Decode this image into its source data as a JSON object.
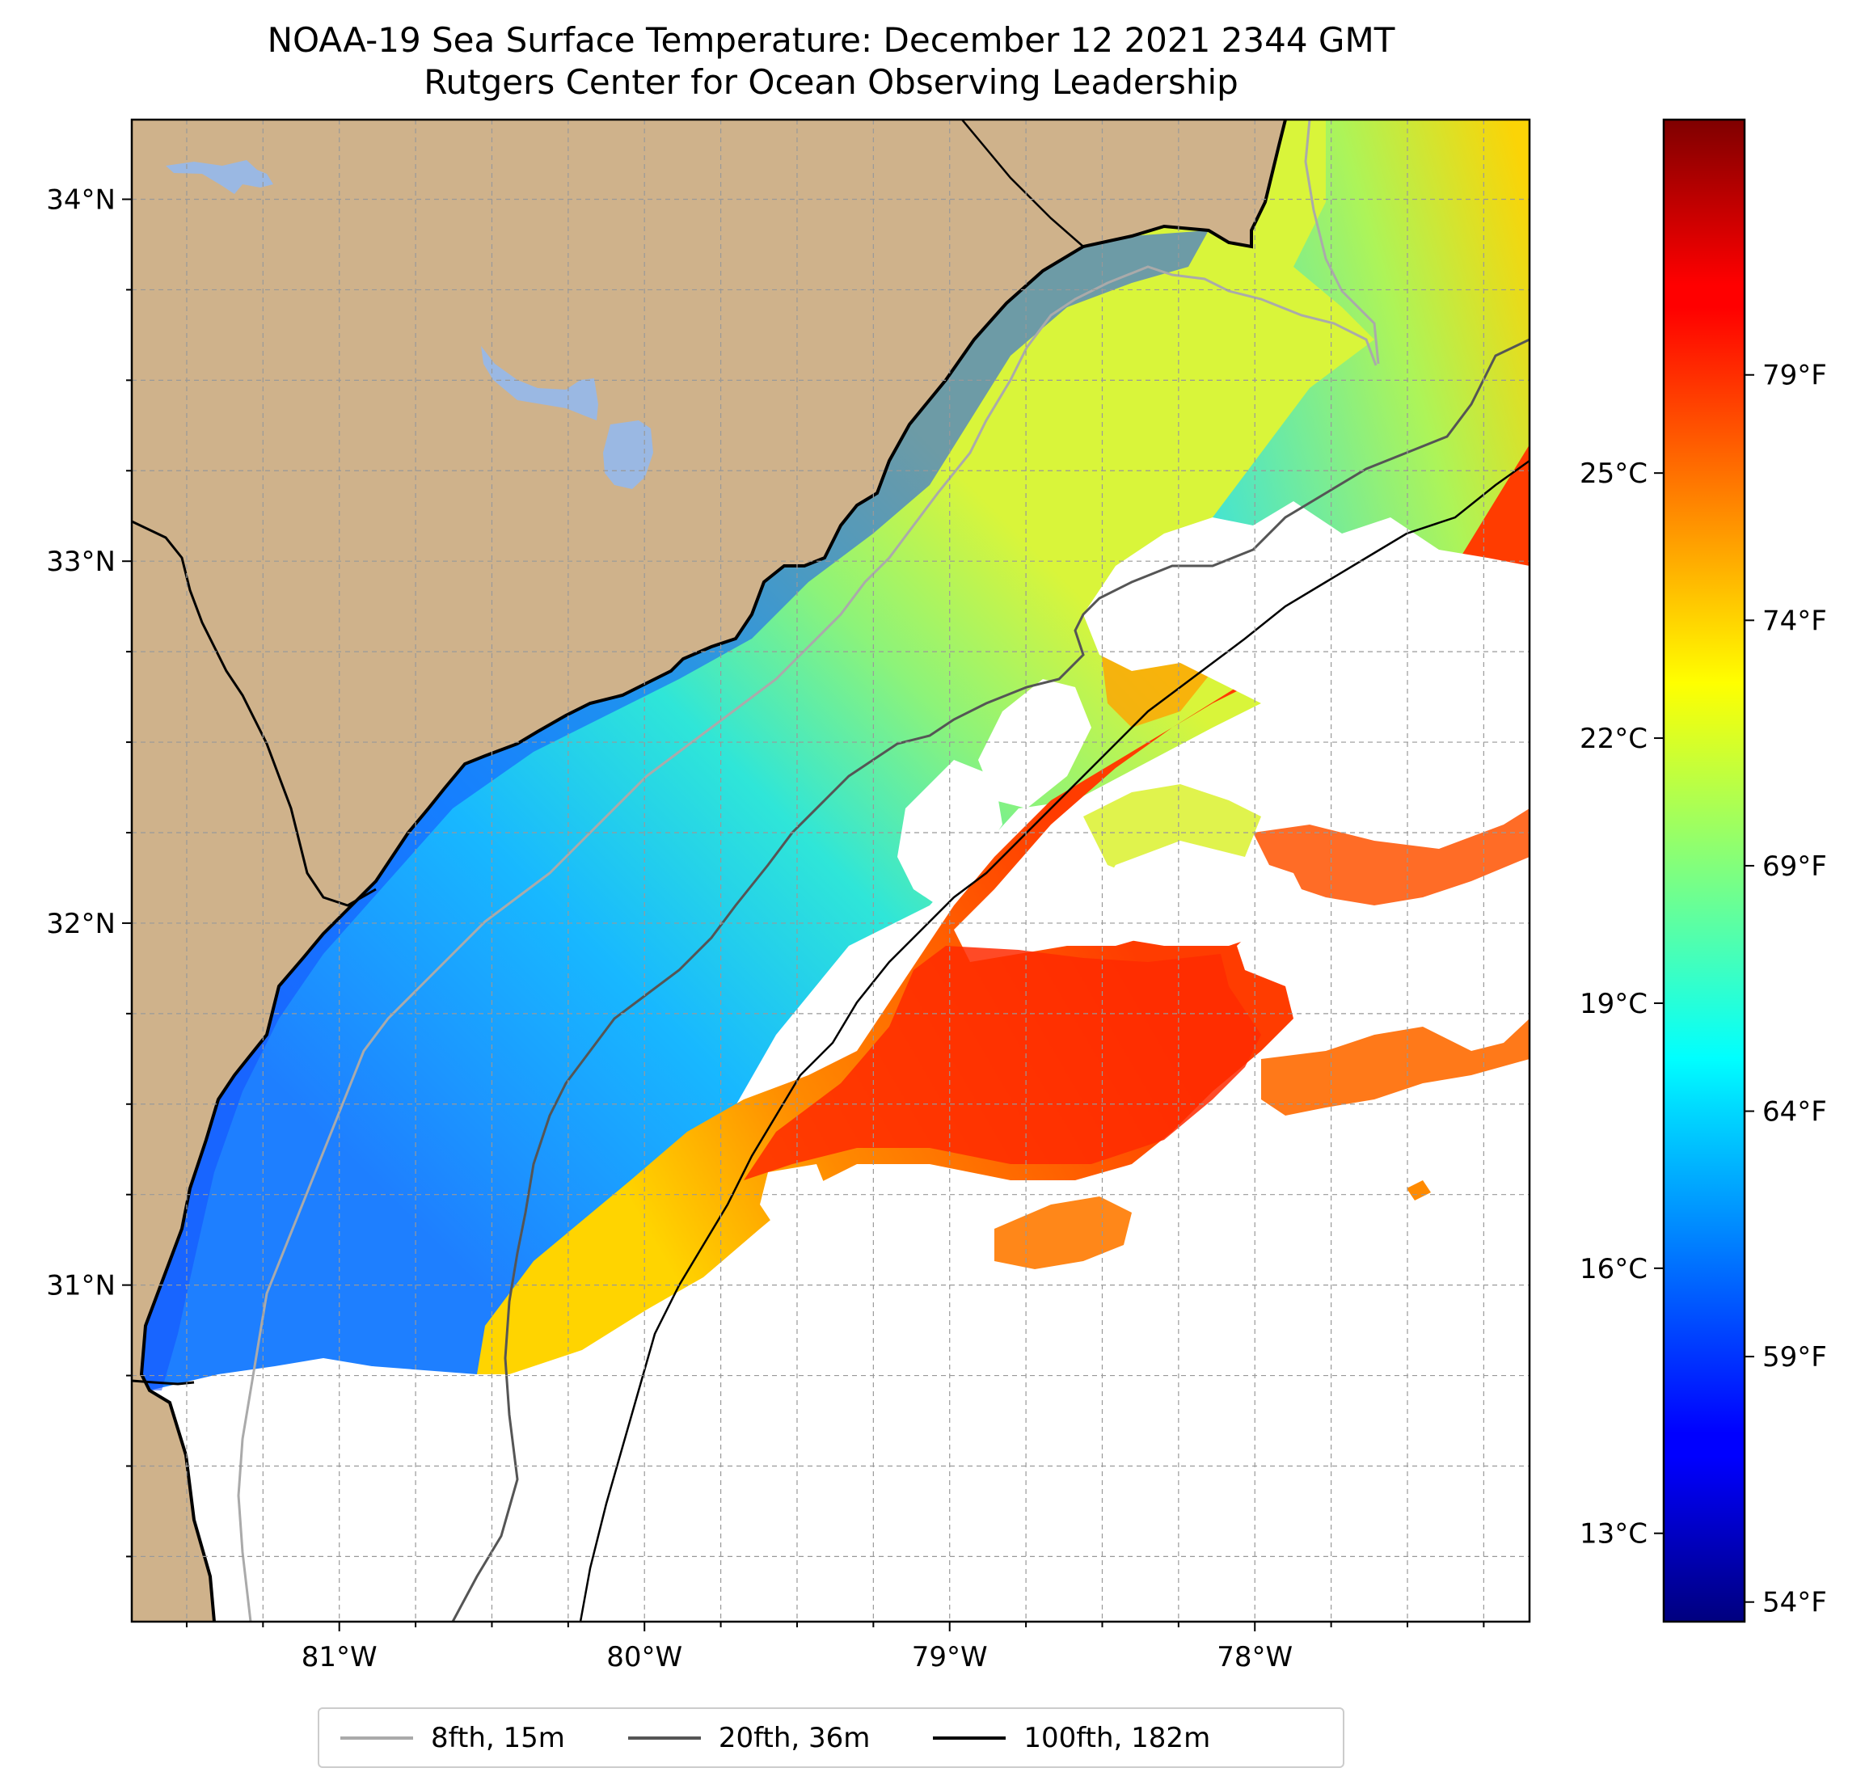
{
  "title": "NOAA-19 Sea Surface Temperature: December 12 2021 2344 GMT",
  "subtitle": "Rutgers Center for Ocean Observing Leadership",
  "map": {
    "lon_range": [
      -81.68,
      -77.1
    ],
    "lat_range": [
      30.07,
      34.22
    ],
    "lat_ticks": [
      {
        "value": 34,
        "label": "34°N"
      },
      {
        "value": 33,
        "label": "33°N"
      },
      {
        "value": 32,
        "label": "32°N"
      },
      {
        "value": 31,
        "label": "31°N"
      }
    ],
    "lon_ticks": [
      {
        "value": -81,
        "label": "81°W"
      },
      {
        "value": -80,
        "label": "80°W"
      },
      {
        "value": -79,
        "label": "79°W"
      },
      {
        "value": -78,
        "label": "78°W"
      }
    ],
    "grid": true,
    "colors": {
      "land": "#cfb28b",
      "lakes": "#9ab8e3",
      "no_data": "#ffffff",
      "contour_8fth": "#aaaaaa",
      "contour_20fth": "#555555",
      "contour_100fth": "#000000"
    }
  },
  "colorbar": {
    "colormap": "jet",
    "range_f": [
      53.6,
      84.2
    ],
    "celsius_ticks": [
      {
        "value": 13,
        "label": "13°C"
      },
      {
        "value": 16,
        "label": "16°C"
      },
      {
        "value": 19,
        "label": "19°C"
      },
      {
        "value": 22,
        "label": "22°C"
      },
      {
        "value": 25,
        "label": "25°C"
      }
    ],
    "fahrenheit_ticks": [
      {
        "value": 54,
        "label": "54°F"
      },
      {
        "value": 59,
        "label": "59°F"
      },
      {
        "value": 64,
        "label": "64°F"
      },
      {
        "value": 69,
        "label": "69°F"
      },
      {
        "value": 74,
        "label": "74°F"
      },
      {
        "value": 79,
        "label": "79°F"
      }
    ]
  },
  "legend": [
    {
      "label": "8fth, 15m",
      "color": "#aaaaaa"
    },
    {
      "label": "20fth, 36m",
      "color": "#555555"
    },
    {
      "label": "100fth, 182m",
      "color": "#000000"
    }
  ]
}
